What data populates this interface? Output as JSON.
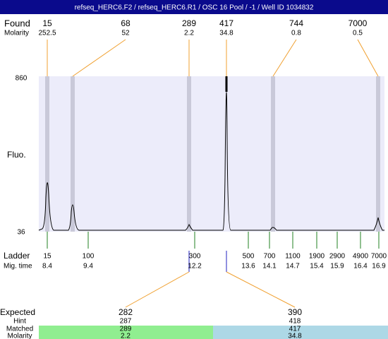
{
  "title": "refseq_HERC6.F2 / refseq_HERC6.R1 / OSC 16 Pool / -1 / Well ID 1034832",
  "found": {
    "label": "Found",
    "molarity_label": "Molarity",
    "peaks": [
      {
        "size": 15,
        "molarity": 252.5
      },
      {
        "size": 68,
        "molarity": 52
      },
      {
        "size": 289,
        "molarity": 2.2
      },
      {
        "size": 417,
        "molarity": 34.8
      },
      {
        "size": 744,
        "molarity": 0.8
      },
      {
        "size": 7000,
        "molarity": 0.5
      }
    ]
  },
  "axis": {
    "top": 860,
    "bottom": 36,
    "label": "Fluo."
  },
  "ladder": {
    "label": "Ladder",
    "mig_label": "Mig. time",
    "markers": [
      {
        "size": 15,
        "time": 8.4
      },
      {
        "size": 100,
        "time": 9.4
      },
      {
        "size": 300,
        "time": 12.2
      },
      {
        "size": 500,
        "time": 13.6
      },
      {
        "size": 700,
        "time": 14.1
      },
      {
        "size": 1100,
        "time": 14.7
      },
      {
        "size": 1900,
        "time": 15.4
      },
      {
        "size": 2900,
        "time": 15.9
      },
      {
        "size": 4900,
        "time": 16.4
      },
      {
        "size": 7000,
        "time": 16.9
      }
    ]
  },
  "expected": {
    "label": "Expected",
    "hint_label": "Hint",
    "matched_label": "Matched",
    "molarity_label": "Molarity",
    "targets": [
      {
        "expected": 282,
        "hint": 287,
        "matched": 289,
        "molarity": 2.2
      },
      {
        "expected": 390,
        "hint": 418,
        "matched": 417,
        "molarity": 34.8
      }
    ]
  }
}
